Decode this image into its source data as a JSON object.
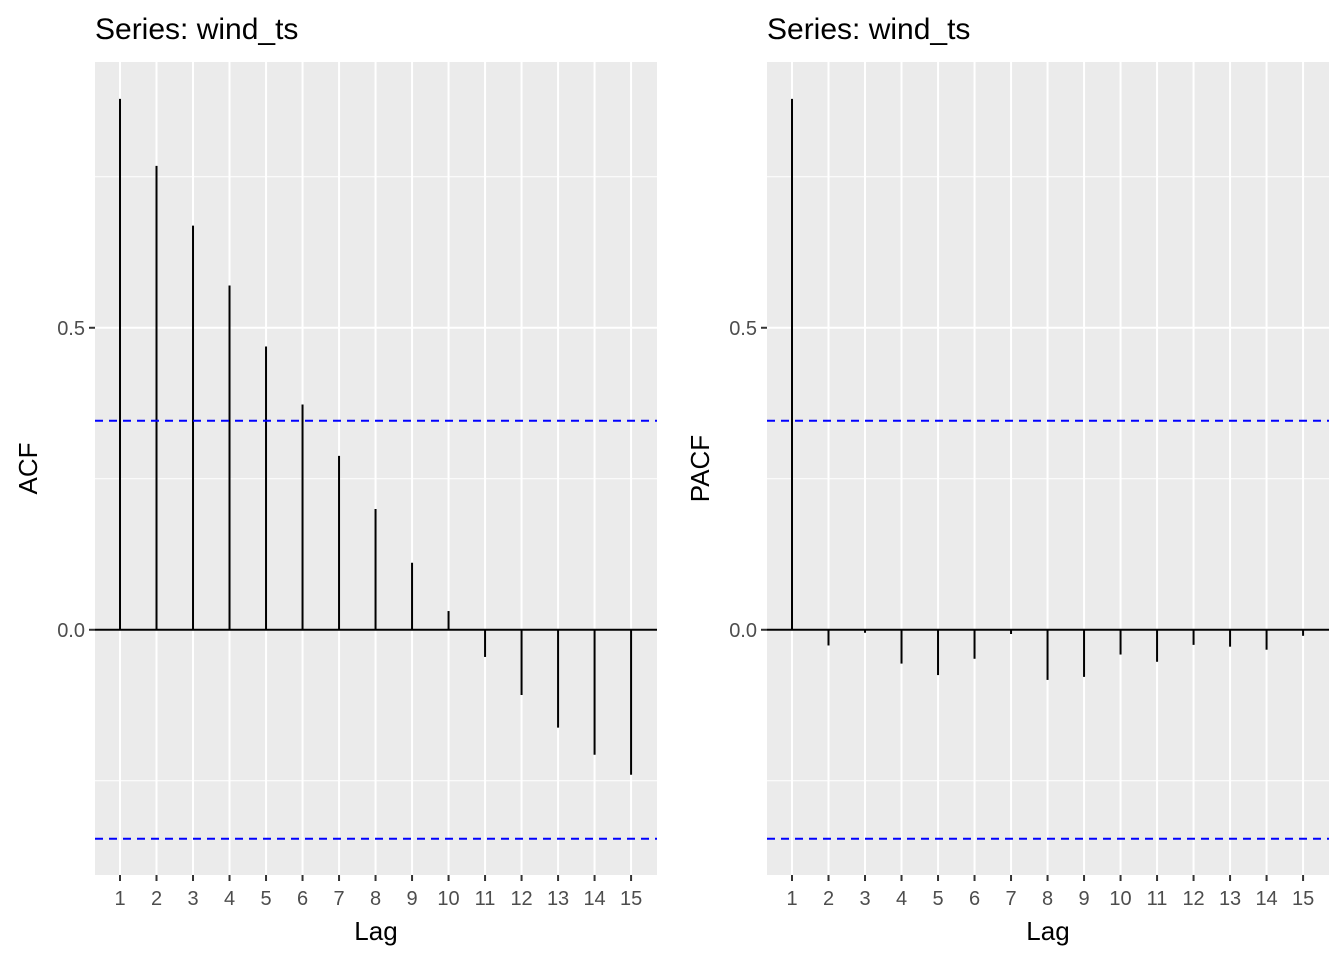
{
  "chart_data": [
    {
      "type": "bar",
      "title": "Series: wind_ts",
      "xlabel": "Lag",
      "ylabel": "ACF",
      "x": [
        1,
        2,
        3,
        4,
        5,
        6,
        7,
        8,
        9,
        10,
        11,
        12,
        13,
        14,
        15
      ],
      "values": [
        0.879,
        0.768,
        0.669,
        0.57,
        0.469,
        0.373,
        0.288,
        0.2,
        0.111,
        0.031,
        -0.045,
        -0.108,
        -0.162,
        -0.207,
        -0.24
      ],
      "ci": [
        0.346,
        -0.346
      ],
      "xlim": [
        0.315,
        15.71
      ],
      "ylim": [
        -0.406,
        0.94
      ],
      "yticks": [
        0.0,
        0.5
      ],
      "ytick_labels": [
        "0.0",
        "0.5"
      ],
      "xtick_labels": [
        "1",
        "2",
        "3",
        "4",
        "5",
        "6",
        "7",
        "8",
        "9",
        "10",
        "11",
        "12",
        "13",
        "14",
        "15"
      ],
      "grid": true,
      "colors": {
        "bar": "#000000",
        "ci": "#0000ff",
        "panel": "#ebebeb",
        "grid": "#ffffff"
      }
    },
    {
      "type": "bar",
      "title": "Series: wind_ts",
      "xlabel": "Lag",
      "ylabel": "PACF",
      "x": [
        1,
        2,
        3,
        4,
        5,
        6,
        7,
        8,
        9,
        10,
        11,
        12,
        13,
        14,
        15
      ],
      "values": [
        0.879,
        -0.026,
        -0.005,
        -0.056,
        -0.075,
        -0.048,
        -0.007,
        -0.083,
        -0.078,
        -0.041,
        -0.053,
        -0.025,
        -0.028,
        -0.033,
        -0.01
      ],
      "ci": [
        0.346,
        -0.346
      ],
      "xlim": [
        0.315,
        15.71
      ],
      "ylim": [
        -0.406,
        0.94
      ],
      "yticks": [
        0.0,
        0.5
      ],
      "ytick_labels": [
        "0.0",
        "0.5"
      ],
      "xtick_labels": [
        "1",
        "2",
        "3",
        "4",
        "5",
        "6",
        "7",
        "8",
        "9",
        "10",
        "11",
        "12",
        "13",
        "14",
        "15"
      ],
      "grid": true,
      "colors": {
        "bar": "#000000",
        "ci": "#0000ff",
        "panel": "#ebebeb",
        "grid": "#ffffff"
      }
    }
  ]
}
